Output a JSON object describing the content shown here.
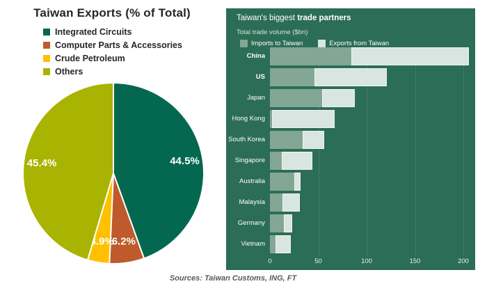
{
  "footer": {
    "text": "Sources: Taiwan Customs, ING, FT"
  },
  "trade_panel": {
    "title_regular": "Taiwan's biggest ",
    "title_bold": "trade partners",
    "subtitle": "Total trade volume ($bn)"
  },
  "chart_data": [
    {
      "type": "pie",
      "title": "Taiwan Exports (% of Total)",
      "categories": [
        "Integrated Circuits",
        "Computer Parts & Accessories",
        "Crude Petroleum",
        "Others"
      ],
      "values": [
        44.5,
        6.2,
        3.9,
        45.4
      ],
      "labels": [
        "44.5%",
        "6.2%",
        "3.9%",
        "45.4%"
      ],
      "colors": [
        "#03684F",
        "#BE5A2C",
        "#FFC002",
        "#A9B301"
      ],
      "start_angle": "top",
      "direction": "clockwise",
      "legend_position": "top-left",
      "slice_separator_color": "#ffffff"
    },
    {
      "type": "bar",
      "orientation": "horizontal",
      "stacked": true,
      "title": "Taiwan's biggest trade partners",
      "subtitle": "Total trade volume ($bn)",
      "categories": [
        "China",
        "US",
        "Japan",
        "Hong Kong",
        "South Korea",
        "Singapore",
        "Australia",
        "Malaysia",
        "Germany",
        "Vietnam"
      ],
      "series": [
        {
          "name": "Imports to Taiwan",
          "color": "#83A794",
          "values": [
            84,
            46,
            54,
            2,
            34,
            12,
            25,
            13,
            14,
            6
          ]
        },
        {
          "name": "Exports from Taiwan",
          "color": "#D9E5E0",
          "values": [
            122,
            75,
            34,
            65,
            22,
            32,
            7,
            18,
            9,
            16
          ]
        }
      ],
      "totals": [
        206,
        121,
        88,
        67,
        56,
        44,
        32,
        31,
        23,
        22
      ],
      "xlim": [
        0,
        200
      ],
      "xticks": [
        0,
        50,
        100,
        150,
        200
      ],
      "bold_categories": [
        "China",
        "US"
      ],
      "background_color": "#2C6D57",
      "grid": true,
      "legend_position": "top-left"
    }
  ]
}
